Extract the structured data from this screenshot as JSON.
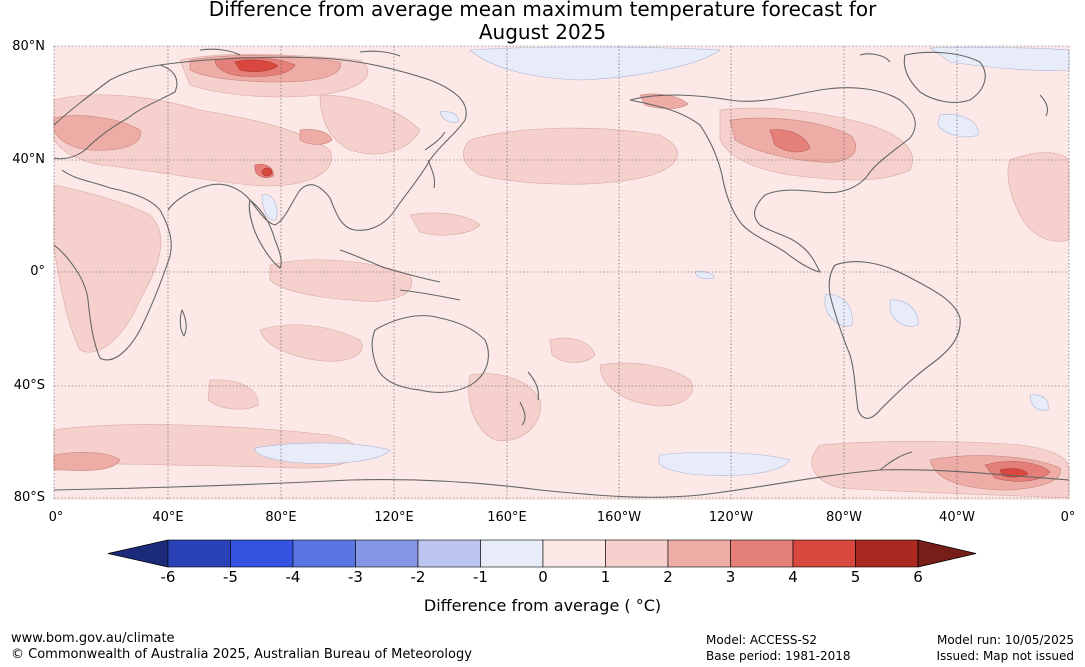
{
  "title": {
    "line1": "Difference from average mean maximum temperature forecast for",
    "line2": "August 2025"
  },
  "map": {
    "lat_labels": [
      "80°N",
      "40°N",
      "0°",
      "40°S",
      "80°S"
    ],
    "lon_labels": [
      "0°",
      "40°E",
      "80°E",
      "120°E",
      "160°E",
      "160°W",
      "120°W",
      "80°W",
      "40°W",
      "0°"
    ],
    "land_outline_color": "#666666",
    "gridline_color": "#555555"
  },
  "colorbar": {
    "ticks": [
      "-6",
      "-5",
      "-4",
      "-3",
      "-2",
      "-1",
      "0",
      "1",
      "2",
      "3",
      "4",
      "5",
      "6"
    ],
    "label": "Difference from average ( °C)",
    "colors": [
      "#1c2a7c",
      "#2a42b8",
      "#3352e0",
      "#5a76e4",
      "#8596e6",
      "#bcc5ef",
      "#e8ecf8",
      "#fce9e7",
      "#f5d0cc",
      "#edaca5",
      "#e48079",
      "#d8483e",
      "#aa2a22",
      "#781e18"
    ]
  },
  "footer": {
    "website": "www.bom.gov.au/climate",
    "copyright": "© Commonwealth of Australia 2025, Australian Bureau of Meteorology",
    "model": "Model: ACCESS-S2",
    "base_period": "Base period: 1981-2018",
    "model_run": "Model run: 10/05/2025",
    "issued": "Issued: Map not issued"
  }
}
